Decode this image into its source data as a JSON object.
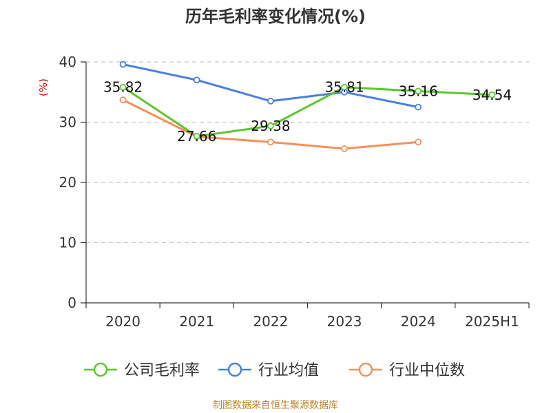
{
  "chart_data": {
    "type": "line",
    "title": "历年毛利率变化情况(%)",
    "ylabel": "(%)",
    "xlabel": "",
    "categories": [
      "2020",
      "2021",
      "2022",
      "2023",
      "2024",
      "2025H1"
    ],
    "ylim": [
      0,
      40
    ],
    "yticks": [
      0,
      10,
      20,
      30,
      40
    ],
    "grid": true,
    "legend_position": "bottom",
    "series": [
      {
        "name": "公司毛利率",
        "color": "#5cc62c",
        "values": [
          35.82,
          27.66,
          29.38,
          35.81,
          35.16,
          34.54
        ],
        "labels": [
          "35.82",
          "27.66",
          "29.38",
          "35.81",
          "35.16",
          "34.54"
        ]
      },
      {
        "name": "行业均值",
        "color": "#4a7fdc",
        "values": [
          39.6,
          37.0,
          33.5,
          35.0,
          32.5,
          null
        ]
      },
      {
        "name": "行业中位数",
        "color": "#f4905a",
        "values": [
          33.7,
          27.6,
          26.7,
          25.6,
          26.7,
          null
        ]
      }
    ]
  },
  "footer": {
    "source": "制图数据来自恒生聚源数据库"
  }
}
